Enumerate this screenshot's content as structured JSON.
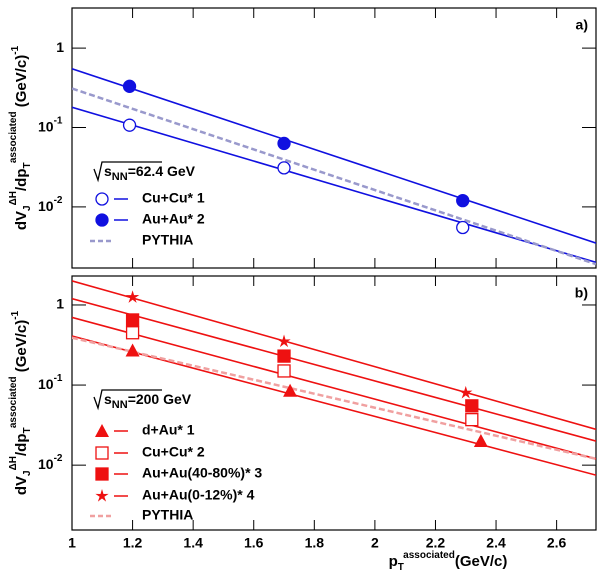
{
  "chart_data": [
    {
      "type": "scatter",
      "panel_label": "a)",
      "log_y": true,
      "legend": "lower left",
      "energy": {
        "s": "s",
        "sub": "NN",
        "rest": "=62.4 GeV"
      },
      "xlim": [
        1,
        2.73
      ],
      "ylim": [
        0.0017,
        3.2
      ],
      "xtick_labels": false,
      "xticks": [
        1,
        1.2,
        1.4,
        1.6,
        1.8,
        2,
        2.2,
        2.4,
        2.6
      ],
      "yticks": [
        1,
        {
          "value": 0.1,
          "label": "10",
          "exponent": "-1"
        },
        {
          "value": 0.01,
          "label": "10",
          "exponent": "-2"
        }
      ],
      "series": [
        {
          "name": "Cu+Cu* 1",
          "color": "#1010e0",
          "marker": "circle-open",
          "x": [
            1.19,
            1.7,
            2.29
          ],
          "values": [
            0.107,
            0.031,
            0.0055
          ],
          "fit": {
            "x": [
              1,
              2.73
            ],
            "values": [
              0.18,
              0.002
            ]
          }
        },
        {
          "name": "Au+Au* 2",
          "color": "#1010e0",
          "marker": "circle",
          "x": [
            1.19,
            1.7,
            2.29
          ],
          "values": [
            0.33,
            0.063,
            0.012
          ],
          "fit": {
            "x": [
              1,
              2.73
            ],
            "values": [
              0.55,
              0.0035
            ]
          }
        },
        {
          "name": "PYTHIA",
          "color": "#9999cc",
          "dashed": true,
          "fit": {
            "x": [
              1,
              2.73
            ],
            "values": [
              0.31,
              0.0019
            ]
          }
        }
      ]
    },
    {
      "type": "scatter",
      "panel_label": "b)",
      "log_y": true,
      "legend": "lower left",
      "energy": {
        "s": "s",
        "sub": "NN",
        "rest": "=200 GeV"
      },
      "xlim": [
        1,
        2.73
      ],
      "ylim": [
        0.00155,
        2.3
      ],
      "xtick_labels": true,
      "xticks": [
        1,
        1.2,
        1.4,
        1.6,
        1.8,
        2,
        2.2,
        2.4,
        2.6
      ],
      "yticks": [
        1,
        {
          "value": 0.1,
          "label": "10",
          "exponent": "-1"
        },
        {
          "value": 0.01,
          "label": "10",
          "exponent": "-2"
        }
      ],
      "series": [
        {
          "name": "d+Au* 1",
          "color": "#ee1111",
          "marker": "triangle",
          "x": [
            1.2,
            1.72,
            2.35
          ],
          "values": [
            0.27,
            0.085,
            0.02
          ],
          "fit": {
            "x": [
              1,
              2.73
            ],
            "values": [
              0.41,
              0.0075
            ]
          }
        },
        {
          "name": "Cu+Cu* 2",
          "color": "#ee1111",
          "marker": "square-open",
          "x": [
            1.2,
            1.7,
            2.32
          ],
          "values": [
            0.45,
            0.15,
            0.037
          ],
          "fit": {
            "x": [
              1,
              2.73
            ],
            "values": [
              0.7,
              0.012
            ]
          }
        },
        {
          "name": "Au+Au(40-80%)* 3",
          "color": "#ee1111",
          "marker": "square",
          "x": [
            1.2,
            1.7,
            2.32
          ],
          "values": [
            0.65,
            0.23,
            0.055
          ],
          "fit": {
            "x": [
              1,
              2.73
            ],
            "values": [
              1.2,
              0.02
            ]
          }
        },
        {
          "name": "Au+Au(0-12%)* 4",
          "color": "#ee1111",
          "marker": "star",
          "x": [
            1.2,
            1.7,
            2.3
          ],
          "values": [
            1.25,
            0.35,
            0.08
          ],
          "fit": {
            "x": [
              1,
              2.73
            ],
            "values": [
              2.0,
              0.028
            ]
          }
        },
        {
          "name": "PYTHIA",
          "color": "#f0a0a0",
          "dashed": true,
          "fit": {
            "x": [
              1,
              2.73
            ],
            "values": [
              0.39,
              0.012
            ]
          }
        }
      ]
    }
  ],
  "ylabel": {
    "a": "dV",
    "b": "J",
    "c": "ΔΗ",
    "d": "/dp",
    "e": "T",
    "f": "associated",
    "g": " (GeV/c)",
    "h": "-1"
  },
  "xlabel": {
    "a": "p",
    "b": "T",
    "c": "associated",
    "d": "(GeV/c)"
  }
}
